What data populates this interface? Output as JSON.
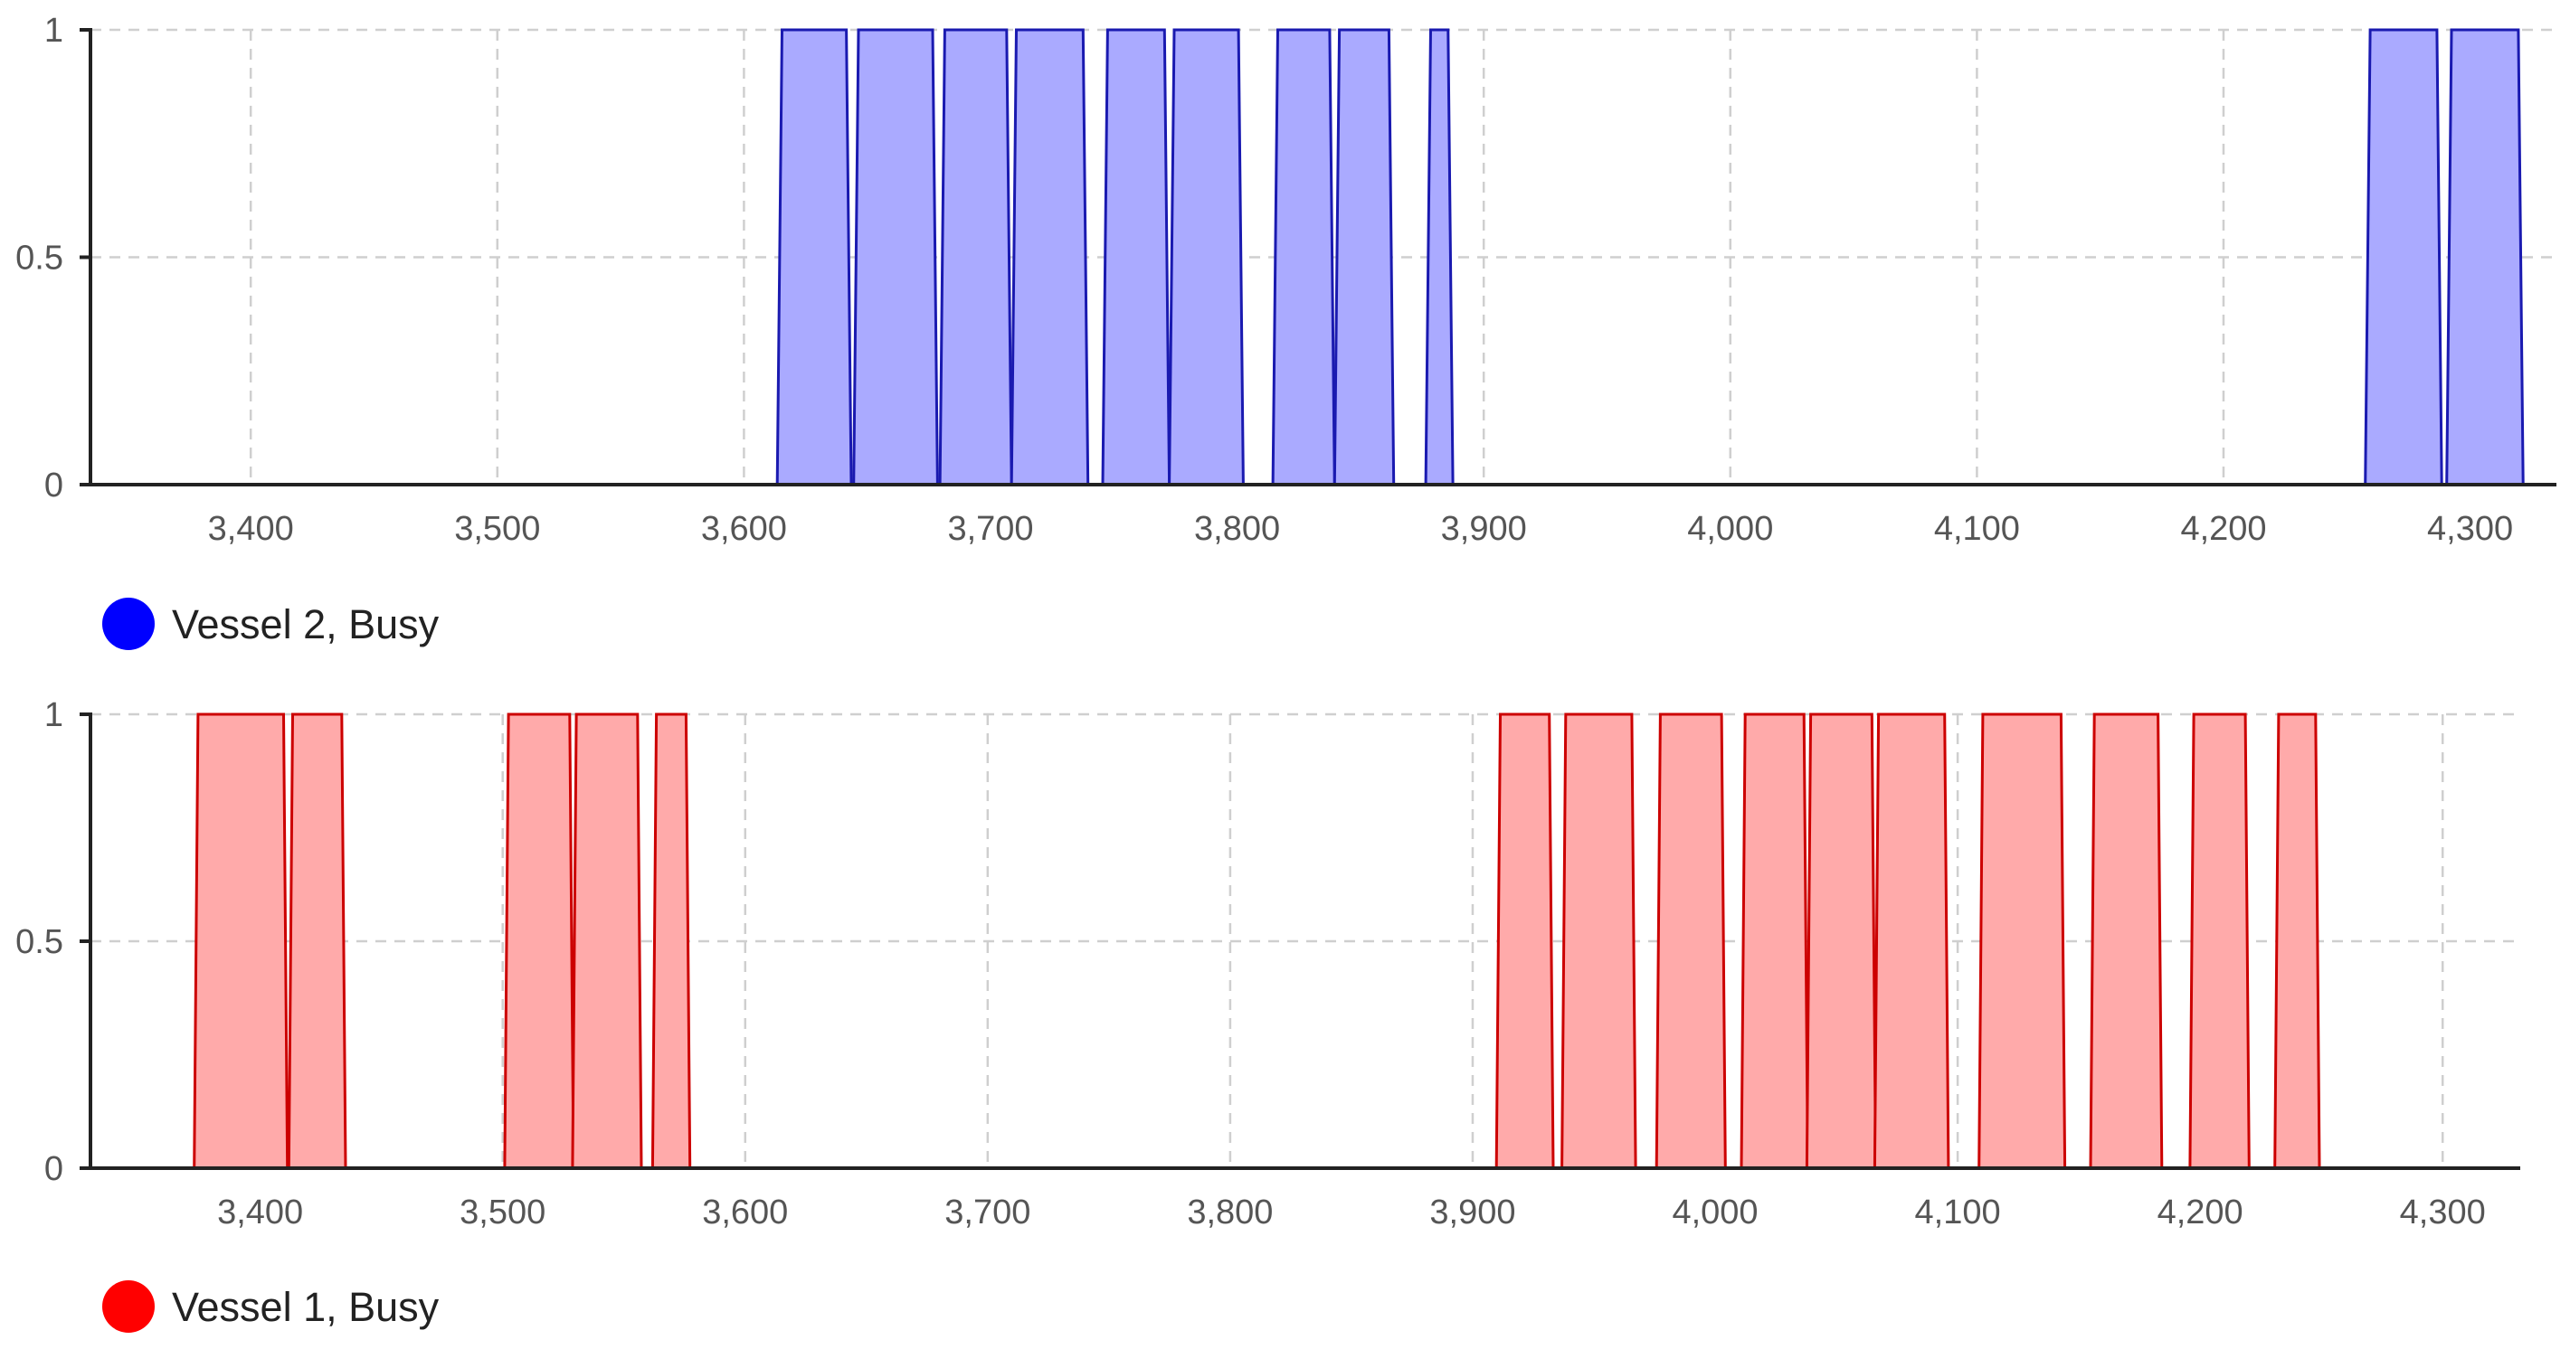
{
  "chart_data": [
    {
      "type": "area",
      "xlim": [
        3335,
        4335
      ],
      "ylim": [
        0,
        1
      ],
      "x_ticks": [
        3400,
        3500,
        3600,
        3700,
        3800,
        3900,
        4000,
        4100,
        4200,
        4300
      ],
      "x_tick_labels": [
        "3,400",
        "3,500",
        "3,600",
        "3,700",
        "3,800",
        "3,900",
        "4,000",
        "4,100",
        "4,200",
        "4,300"
      ],
      "y_ticks": [
        0,
        0.5,
        1
      ],
      "y_tick_labels": [
        "0",
        "0.5",
        "1"
      ],
      "grid": true,
      "legend_position": "bottom-left",
      "series": [
        {
          "name": "Vessel 2, Busy",
          "color": "#0000ff",
          "fill_color": "#aaaaff",
          "stroke_color": "#1a1ab0",
          "busy_intervals": [
            [
              3615,
              3642
            ],
            [
              3646,
              3677
            ],
            [
              3681,
              3707
            ],
            [
              3710,
              3738
            ],
            [
              3747,
              3771
            ],
            [
              3774,
              3801
            ],
            [
              3816,
              3838
            ],
            [
              3841,
              3862
            ],
            [
              3878,
              3886
            ],
            [
              4259,
              4287
            ],
            [
              4292,
              4320
            ]
          ]
        }
      ]
    },
    {
      "type": "area",
      "xlim": [
        3330,
        4332
      ],
      "ylim": [
        0,
        1
      ],
      "x_ticks": [
        3400,
        3500,
        3600,
        3700,
        3800,
        3900,
        4000,
        4100,
        4200,
        4300
      ],
      "x_tick_labels": [
        "3,400",
        "3,500",
        "3,600",
        "3,700",
        "3,800",
        "3,900",
        "4,000",
        "4,100",
        "4,200",
        "4,300"
      ],
      "y_ticks": [
        0,
        0.5,
        1
      ],
      "y_tick_labels": [
        "0",
        "0.5",
        "1"
      ],
      "grid": true,
      "legend_position": "bottom-left",
      "series": [
        {
          "name": "Vessel 1, Busy",
          "color": "#ff0000",
          "fill_color": "#ffaaaa",
          "stroke_color": "#cc0000",
          "busy_intervals": [
            [
              3374,
              3410
            ],
            [
              3413,
              3434
            ],
            [
              3502,
              3528
            ],
            [
              3530,
              3556
            ],
            [
              3563,
              3576
            ],
            [
              3911,
              3932
            ],
            [
              3938,
              3966
            ],
            [
              3977,
              4003
            ],
            [
              4012,
              4037
            ],
            [
              4039,
              4065
            ],
            [
              4067,
              4095
            ],
            [
              4110,
              4143
            ],
            [
              4156,
              4183
            ],
            [
              4197,
              4219
            ],
            [
              4232,
              4248
            ]
          ]
        }
      ]
    }
  ]
}
